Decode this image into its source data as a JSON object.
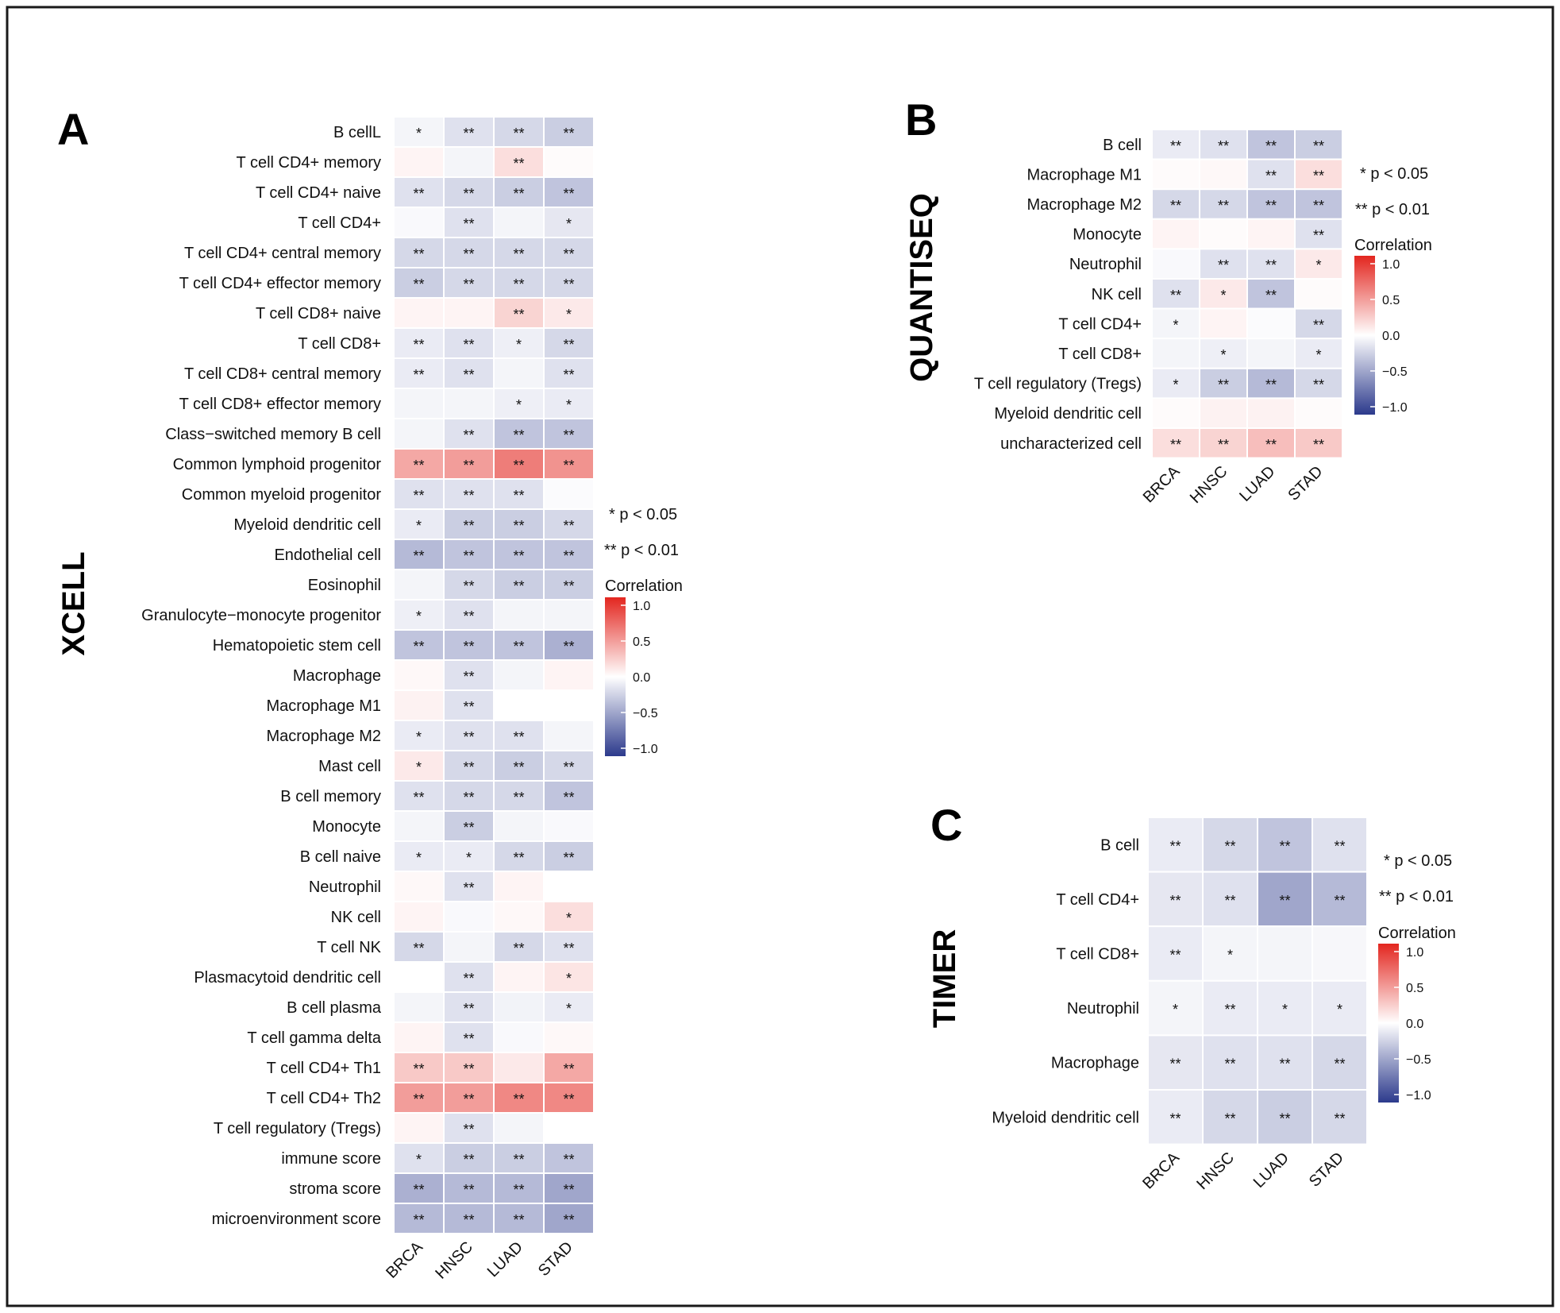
{
  "sig_legend": [
    "* p < 0.05",
    "** p < 0.01"
  ],
  "colors": {
    "low": "#2c3a8c",
    "mid": "#ffffff",
    "high": "#e3261f"
  },
  "chart_data": [
    {
      "type": "heatmap",
      "panel": "A",
      "title": "XCELL",
      "legend_title": "Correlation",
      "scale_ticks": [
        "1.0",
        "0.5",
        "0.0",
        "−0.5",
        "−1.0"
      ],
      "vlim": [
        -1,
        1
      ],
      "columns": [
        "BRCA",
        "HNSC",
        "LUAD",
        "STAD"
      ],
      "rows": [
        "B cellL",
        "T cell CD4+ memory",
        "T cell CD4+ naive",
        "T cell CD4+",
        "T cell CD4+ central memory",
        "T cell CD4+ effector memory",
        "T cell CD8+ naive",
        "T cell CD8+",
        "T cell CD8+ central memory",
        "T cell CD8+ effector memory",
        "Class−switched memory B cell",
        "Common lymphoid progenitor",
        "Common myeloid progenitor",
        "Myeloid dendritic cell",
        "Endothelial cell",
        "Eosinophil",
        "Granulocyte−monocyte progenitor",
        "Hematopoietic stem cell",
        "Macrophage",
        "Macrophage M1",
        "Macrophage M2",
        "Mast cell",
        "B cell memory",
        "Monocyte",
        "B cell naive",
        "Neutrophil",
        "NK cell",
        "T cell NK",
        "Plasmacytoid dendritic cell",
        "B cell plasma",
        "T cell gamma delta",
        "T cell CD4+ Th1",
        "T cell CD4+ Th2",
        "T cell regulatory (Tregs)",
        "immune score",
        "stroma score",
        "microenvironment score"
      ],
      "values": [
        [
          -0.05,
          -0.15,
          -0.2,
          -0.25
        ],
        [
          0.05,
          -0.05,
          0.15,
          0.02
        ],
        [
          -0.15,
          -0.2,
          -0.25,
          -0.3
        ],
        [
          -0.03,
          -0.15,
          -0.05,
          -0.12
        ],
        [
          -0.2,
          -0.2,
          -0.2,
          -0.2
        ],
        [
          -0.25,
          -0.2,
          -0.2,
          -0.2
        ],
        [
          0.05,
          0.05,
          0.2,
          0.1
        ],
        [
          -0.1,
          -0.15,
          -0.08,
          -0.2
        ],
        [
          -0.1,
          -0.15,
          -0.05,
          -0.15
        ],
        [
          -0.05,
          -0.05,
          -0.08,
          -0.1
        ],
        [
          -0.05,
          -0.15,
          -0.3,
          -0.3
        ],
        [
          0.4,
          0.45,
          0.6,
          0.5
        ],
        [
          -0.15,
          -0.15,
          -0.15,
          -0.02
        ],
        [
          -0.1,
          -0.25,
          -0.25,
          -0.2
        ],
        [
          -0.35,
          -0.3,
          -0.3,
          -0.3
        ],
        [
          -0.05,
          -0.2,
          -0.25,
          -0.25
        ],
        [
          -0.08,
          -0.15,
          -0.05,
          -0.05
        ],
        [
          -0.3,
          -0.3,
          -0.3,
          -0.4
        ],
        [
          0.03,
          -0.15,
          -0.05,
          0.05
        ],
        [
          0.06,
          -0.15,
          0.0,
          0.0
        ],
        [
          -0.1,
          -0.15,
          -0.15,
          -0.05
        ],
        [
          0.1,
          -0.2,
          -0.25,
          -0.2
        ],
        [
          -0.15,
          -0.2,
          -0.2,
          -0.3
        ],
        [
          -0.05,
          -0.25,
          -0.05,
          -0.03
        ],
        [
          -0.1,
          -0.1,
          -0.2,
          -0.25
        ],
        [
          0.03,
          -0.15,
          0.05,
          0.0
        ],
        [
          0.05,
          -0.03,
          0.03,
          0.15
        ],
        [
          -0.2,
          -0.05,
          -0.2,
          -0.15
        ],
        [
          0.0,
          -0.15,
          0.05,
          0.12
        ],
        [
          -0.05,
          -0.15,
          -0.06,
          -0.1
        ],
        [
          0.05,
          -0.15,
          -0.03,
          0.03
        ],
        [
          0.25,
          0.25,
          0.1,
          0.4
        ],
        [
          0.45,
          0.45,
          0.55,
          0.55
        ],
        [
          0.05,
          -0.15,
          -0.05,
          0.0
        ],
        [
          -0.15,
          -0.25,
          -0.25,
          -0.3
        ],
        [
          -0.4,
          -0.35,
          -0.35,
          -0.45
        ],
        [
          -0.35,
          -0.35,
          -0.35,
          -0.45
        ]
      ],
      "significance": [
        [
          "*",
          "**",
          "**",
          "**"
        ],
        [
          "",
          "",
          "**",
          ""
        ],
        [
          "**",
          "**",
          "**",
          "**"
        ],
        [
          "",
          "**",
          "",
          "*"
        ],
        [
          "**",
          "**",
          "**",
          "**"
        ],
        [
          "**",
          "**",
          "**",
          "**"
        ],
        [
          "",
          "",
          "**",
          "*"
        ],
        [
          "**",
          "**",
          "*",
          "**"
        ],
        [
          "**",
          "**",
          "",
          "**"
        ],
        [
          "",
          "",
          "*",
          "*"
        ],
        [
          "",
          "**",
          "**",
          "**"
        ],
        [
          "**",
          "**",
          "**",
          "**"
        ],
        [
          "**",
          "**",
          "**",
          ""
        ],
        [
          "*",
          "**",
          "**",
          "**"
        ],
        [
          "**",
          "**",
          "**",
          "**"
        ],
        [
          "",
          "**",
          "**",
          "**"
        ],
        [
          "*",
          "**",
          "",
          ""
        ],
        [
          "**",
          "**",
          "**",
          "**"
        ],
        [
          "",
          "**",
          "",
          ""
        ],
        [
          "",
          "**",
          "",
          ""
        ],
        [
          "*",
          "**",
          "**",
          ""
        ],
        [
          "*",
          "**",
          "**",
          "**"
        ],
        [
          "**",
          "**",
          "**",
          "**"
        ],
        [
          "",
          "**",
          "",
          ""
        ],
        [
          "*",
          "*",
          "**",
          "**"
        ],
        [
          "",
          "**",
          "",
          ""
        ],
        [
          "",
          "",
          "",
          "*"
        ],
        [
          "**",
          "",
          "**",
          "**"
        ],
        [
          "",
          "**",
          "",
          "*"
        ],
        [
          "",
          "**",
          "",
          "*"
        ],
        [
          "",
          "**",
          "",
          ""
        ],
        [
          "**",
          "**",
          "",
          "**"
        ],
        [
          "**",
          "**",
          "**",
          "**"
        ],
        [
          "",
          "**",
          "",
          ""
        ],
        [
          "*",
          "**",
          "**",
          "**"
        ],
        [
          "**",
          "**",
          "**",
          "**"
        ],
        [
          "**",
          "**",
          "**",
          "**"
        ]
      ]
    },
    {
      "type": "heatmap",
      "panel": "B",
      "title": "QUANTISEQ",
      "legend_title": "Correlation",
      "scale_ticks": [
        "1.0",
        "0.5",
        "0.0",
        "−0.5",
        "−1.0"
      ],
      "vlim": [
        -1,
        1
      ],
      "columns": [
        "BRCA",
        "HNSC",
        "LUAD",
        "STAD"
      ],
      "rows": [
        "B cell",
        "Macrophage M1",
        "Macrophage M2",
        "Monocyte",
        "Neutrophil",
        "NK cell",
        "T cell CD4+",
        "T cell CD8+",
        "T cell regulatory (Tregs)",
        "Myeloid dendritic cell",
        "uncharacterized cell"
      ],
      "values": [
        [
          -0.1,
          -0.15,
          -0.3,
          -0.25
        ],
        [
          0.02,
          0.03,
          -0.15,
          0.15
        ],
        [
          -0.2,
          -0.2,
          -0.3,
          -0.3
        ],
        [
          0.05,
          0.02,
          0.05,
          -0.15
        ],
        [
          -0.03,
          -0.15,
          -0.15,
          0.1
        ],
        [
          -0.15,
          0.1,
          -0.3,
          0.02
        ],
        [
          -0.05,
          0.05,
          -0.02,
          -0.2
        ],
        [
          -0.05,
          -0.08,
          -0.05,
          -0.1
        ],
        [
          -0.1,
          -0.25,
          -0.35,
          -0.2
        ],
        [
          0.02,
          0.06,
          0.06,
          0.02
        ],
        [
          0.15,
          0.2,
          0.3,
          0.25
        ]
      ],
      "significance": [
        [
          "**",
          "**",
          "**",
          "**"
        ],
        [
          "",
          "",
          "**",
          "**"
        ],
        [
          "**",
          "**",
          "**",
          "**"
        ],
        [
          "",
          "",
          "",
          "**"
        ],
        [
          "",
          "**",
          "**",
          "*"
        ],
        [
          "**",
          "*",
          "**",
          ""
        ],
        [
          "*",
          "",
          "",
          "**"
        ],
        [
          "",
          "*",
          "",
          "*"
        ],
        [
          "*",
          "**",
          "**",
          "**"
        ],
        [
          "",
          "",
          "",
          ""
        ],
        [
          "**",
          "**",
          "**",
          "**"
        ]
      ]
    },
    {
      "type": "heatmap",
      "panel": "C",
      "title": "TIMER",
      "legend_title": "Correlation",
      "scale_ticks": [
        "1.0",
        "0.5",
        "0.0",
        "−0.5",
        "−1.0"
      ],
      "vlim": [
        -1,
        1
      ],
      "columns": [
        "BRCA",
        "HNSC",
        "LUAD",
        "STAD"
      ],
      "rows": [
        "B cell",
        "T cell CD4+",
        "T cell CD8+",
        "Neutrophil",
        "Macrophage",
        "Myeloid dendritic cell"
      ],
      "values": [
        [
          -0.1,
          -0.2,
          -0.3,
          -0.15
        ],
        [
          -0.12,
          -0.15,
          -0.45,
          -0.35
        ],
        [
          -0.1,
          -0.05,
          -0.05,
          -0.04
        ],
        [
          -0.05,
          -0.1,
          -0.1,
          -0.1
        ],
        [
          -0.12,
          -0.15,
          -0.15,
          -0.2
        ],
        [
          -0.1,
          -0.2,
          -0.25,
          -0.2
        ]
      ],
      "significance": [
        [
          "**",
          "**",
          "**",
          "**"
        ],
        [
          "**",
          "**",
          "**",
          "**"
        ],
        [
          "**",
          "*",
          "",
          ""
        ],
        [
          "*",
          "**",
          "*",
          "*"
        ],
        [
          "**",
          "**",
          "**",
          "**"
        ],
        [
          "**",
          "**",
          "**",
          "**"
        ]
      ]
    }
  ]
}
